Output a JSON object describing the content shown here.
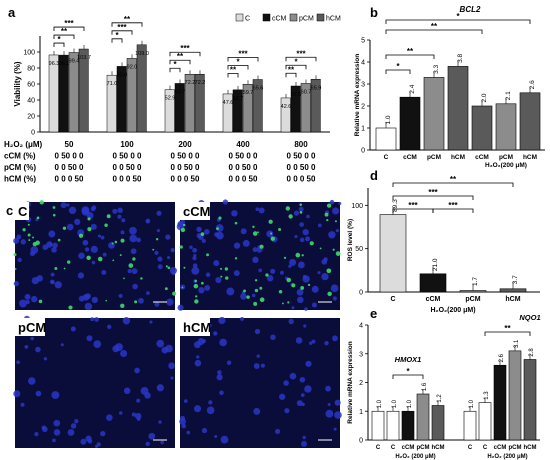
{
  "colors": {
    "C": "#dcdcdc",
    "cCM": "#111111",
    "pCM": "#8c8c8c",
    "hCM": "#5a5a5a",
    "hmox_C": "#ffffff",
    "ros_C": "#dcdcdc",
    "fluor_bg": "#0a0d3a"
  },
  "panels": {
    "a": {
      "letter": "a",
      "chart_data": {
        "type": "bar",
        "ylabel": "Viability (%)",
        "ylim": [
          0,
          120
        ],
        "yticks": [
          "0",
          "20",
          "40",
          "60",
          "80",
          "100"
        ],
        "legend": [
          "C",
          "cCM",
          "pCM",
          "hCM"
        ],
        "groups": [
          "50",
          "100",
          "200",
          "400",
          "800"
        ],
        "series": [
          {
            "name": "C",
            "values": [
              96.3,
              71.0,
              52.9,
              47.6,
              42.6
            ]
          },
          {
            "name": "cCM",
            "values": [
              96.1,
              82.0,
              60.7,
              52.7,
              57.5
            ]
          },
          {
            "name": "pCM",
            "values": [
              99.4,
              92.0,
              72.2,
              59.7,
              60.7
            ]
          },
          {
            "name": "hCM",
            "values": [
              103.7,
              109.0,
              72.2,
              65.6,
              65.9
            ]
          }
        ],
        "labels": [
          [
            "96.3",
            "96.1",
            "99.4",
            "103.7"
          ],
          [
            "71.0",
            "82.0",
            "92.0",
            "109.0"
          ],
          [
            "52.9",
            "60.7",
            "72.2",
            "72.2"
          ],
          [
            "47.6",
            "52.7",
            "59.7",
            "65.6"
          ],
          [
            "42.6",
            "57.5",
            "60.7",
            "65.9"
          ]
        ],
        "sig": [
          [
            "*",
            "**",
            "***"
          ],
          [
            "*",
            "***",
            "**"
          ],
          [
            "*",
            "**",
            "***"
          ],
          [
            "**",
            "*",
            "***"
          ],
          [
            "**",
            "*",
            "***"
          ]
        ],
        "table": {
          "rows": [
            {
              "label": "H₂O₂ (μM)",
              "values": [
                "50",
                "100",
                "200",
                "400",
                "800"
              ]
            },
            {
              "label": "cCM (%)",
              "values": [
                "0 50 0 0",
                "0 50 0 0",
                "0 50 0 0",
                "0 50 0 0",
                "0 50 0 0"
              ]
            },
            {
              "label": "pCM (%)",
              "values": [
                "0 0 50 0",
                "0 0 50 0",
                "0 0 50 0",
                "0 0 50 0",
                "0 0 50 0"
              ]
            },
            {
              "label": "hCM (%)",
              "values": [
                "0 0 0 50",
                "0 0 0 50",
                "0 0 0 50",
                "0 0 0 50",
                "0 0 0 50"
              ]
            }
          ]
        }
      }
    },
    "b": {
      "letter": "b",
      "chart_data": {
        "type": "bar",
        "title": "BCL2",
        "ylabel": "Relative mRNA expression",
        "ylim": [
          0,
          5
        ],
        "yticks": [
          "0",
          "1",
          "2",
          "3",
          "4",
          "5"
        ],
        "categories": [
          "C",
          "cCM",
          "pCM",
          "hCM",
          "cCM",
          "pCM",
          "hCM"
        ],
        "values": [
          1.0,
          2.4,
          3.3,
          3.8,
          2.0,
          2.1,
          2.6
        ],
        "labels": [
          "1.0",
          "2.4",
          "3.3",
          "3.8",
          "2.0",
          "2.1",
          "2.6"
        ],
        "group_label": "H₂O₂(200 μM)",
        "sig": [
          "*",
          "**",
          "**",
          "*"
        ]
      }
    },
    "c": {
      "letter": "c",
      "images": [
        "C",
        "cCM",
        "pCM",
        "hCM"
      ]
    },
    "d": {
      "letter": "d",
      "chart_data": {
        "type": "bar",
        "ylabel": "ROS level (%)",
        "ylim": [
          0,
          120
        ],
        "yticks": [
          "0",
          "50",
          "100"
        ],
        "categories": [
          "C",
          "cCM",
          "pCM",
          "hCM"
        ],
        "values": [
          89.3,
          21.0,
          1.7,
          3.7
        ],
        "labels": [
          "89.3",
          "21.0",
          "1.7",
          "3.7"
        ],
        "xlabel": "H₂O₂(200 μM)",
        "sig": [
          "***",
          "***",
          "***",
          "**"
        ]
      }
    },
    "e": {
      "letter": "e",
      "chart_data": {
        "type": "bar",
        "ylabel": "Relative mRNA expression",
        "ylim": [
          0,
          4
        ],
        "yticks": [
          "0",
          "1",
          "2",
          "3",
          "4"
        ],
        "genes": [
          {
            "name": "HMOX1",
            "categories": [
              "C",
              "C",
              "cCM",
              "pCM",
              "hCM"
            ],
            "values": [
              1.0,
              1.0,
              1.0,
              1.6,
              1.2
            ],
            "labels": [
              "1.0",
              "1.0",
              "1.0",
              "1.6",
              "1.2"
            ],
            "group_label": "H₂O₂ (200 μM)",
            "sig": [
              "*"
            ]
          },
          {
            "name": "NQO1",
            "categories": [
              "C",
              "C",
              "cCM",
              "pCM",
              "hCM"
            ],
            "values": [
              1.0,
              1.3,
              2.6,
              3.1,
              2.8
            ],
            "labels": [
              "1.0",
              "1.3",
              "2.6",
              "3.1",
              "2.8"
            ],
            "group_label": "H₂O₂ (200 μM)",
            "sig": [
              "**"
            ]
          }
        ]
      }
    }
  }
}
